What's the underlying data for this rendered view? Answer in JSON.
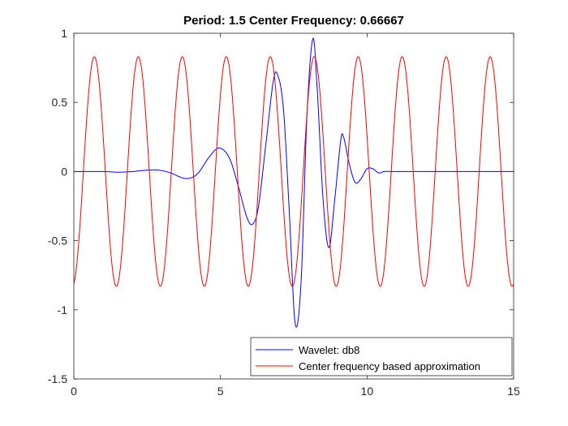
{
  "chart_data": {
    "type": "line",
    "title": "Period: 1.5 Center Frequency: 0.66667",
    "xlabel": "",
    "ylabel": "",
    "xlim": [
      0,
      15
    ],
    "ylim": [
      -1.5,
      1
    ],
    "x_ticks": [
      0,
      5,
      10,
      15
    ],
    "y_ticks": [
      -1.5,
      -1,
      -0.5,
      0,
      0.5,
      1
    ],
    "x_tick_labels": [
      "0",
      "5",
      "10",
      "15"
    ],
    "y_tick_labels": [
      "-1.5",
      "-1",
      "-0.5",
      "0",
      "0.5",
      "1"
    ],
    "grid": false,
    "legend_position": "bottom-right",
    "series": [
      {
        "name": "Wavelet: db8",
        "color": "#0000ff",
        "x": [
          0,
          1.0,
          1.5,
          2.0,
          2.5,
          2.9,
          3.3,
          3.8,
          4.2,
          4.6,
          4.95,
          5.3,
          5.6,
          5.9,
          6.1,
          6.3,
          6.55,
          6.8,
          6.95,
          7.15,
          7.35,
          7.55,
          7.75,
          7.95,
          8.15,
          8.3,
          8.5,
          8.7,
          8.9,
          9.1,
          9.2,
          9.4,
          9.6,
          9.8,
          10.0,
          10.2,
          10.4,
          10.6,
          11.0,
          12.0,
          15.0
        ],
        "y": [
          0,
          0,
          -0.005,
          0,
          0.01,
          0.01,
          -0.01,
          -0.05,
          -0.02,
          0.1,
          0.17,
          0.1,
          -0.1,
          -0.33,
          -0.38,
          -0.25,
          0.2,
          0.65,
          0.7,
          0.45,
          -0.3,
          -1.1,
          -0.8,
          0.4,
          0.96,
          0.6,
          -0.2,
          -0.55,
          -0.2,
          0.22,
          0.25,
          0.05,
          -0.08,
          -0.05,
          0.02,
          0.02,
          -0.01,
          0,
          0,
          0,
          0
        ]
      },
      {
        "name": "Center frequency based approximation",
        "color": "#ff0000",
        "function": "sine",
        "amplitude": 0.83,
        "period": 1.5,
        "phase_peak_x": 0.7,
        "x_range": [
          0,
          15
        ]
      }
    ]
  }
}
